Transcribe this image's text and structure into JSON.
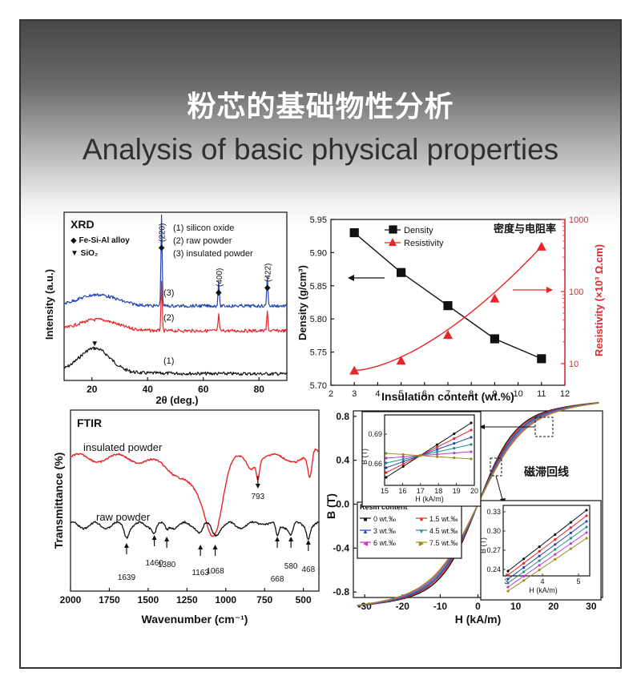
{
  "header": {
    "title_cn": "粉芯的基础物性分析",
    "title_en": "Analysis of basic physical properties"
  },
  "colors": {
    "black": "#111111",
    "red": "#e8262a",
    "blue": "#2346b0",
    "teal": "#1f8f8a",
    "magenta": "#c43cc4",
    "olive": "#a08a18"
  },
  "chart_data": [
    {
      "type": "line",
      "title": "XRD",
      "xlabel": "2θ (deg.)",
      "ylabel": "Intensity (a.u.)",
      "xlim": [
        10,
        90
      ],
      "xticks": [
        "20",
        "40",
        "60",
        "80"
      ],
      "legend_markers": [
        {
          "symbol": "◆",
          "label": "Fe-Si-Al alloy"
        },
        {
          "symbol": "▼",
          "label": "SiO₂"
        }
      ],
      "legend_samples": [
        "(1) silicon oxide",
        "(2) raw powder",
        "(3) insulated powder"
      ],
      "peak_labels": [
        {
          "label": "(220)",
          "x": 45
        },
        {
          "label": "(400)",
          "x": 65.5
        },
        {
          "label": "(422)",
          "x": 83
        }
      ],
      "series": [
        {
          "name": "(1)",
          "color": "black",
          "description": "broad amorphous hump",
          "hump_center": 21
        },
        {
          "name": "(2)",
          "color": "red",
          "peaks": [
            45,
            65.5,
            83
          ]
        },
        {
          "name": "(3)",
          "color": "blue",
          "peaks": [
            45,
            65.5,
            83
          ]
        }
      ]
    },
    {
      "type": "line",
      "title": "密度与电阻率",
      "xlabel": "Insulation content (wt.%)",
      "ylabel": "Density (g/cm³)",
      "y2label": "Resistivity (×10³ Ω.cm)",
      "xlim": [
        2,
        12
      ],
      "ylim": [
        5.7,
        5.95
      ],
      "y2lim_log": [
        5,
        1000
      ],
      "xticks": [
        "2",
        "3",
        "4",
        "5",
        "6",
        "7",
        "8",
        "9",
        "10",
        "11",
        "12"
      ],
      "yticks": [
        "5.70",
        "5.75",
        "5.80",
        "5.85",
        "5.90",
        "5.95"
      ],
      "y2ticks": [
        "10",
        "100",
        "1000"
      ],
      "x": [
        3,
        5,
        7,
        9,
        11
      ],
      "series": [
        {
          "name": "Density",
          "color": "black",
          "marker": "square",
          "axis": "left",
          "values": [
            5.93,
            5.87,
            5.82,
            5.77,
            5.74
          ]
        },
        {
          "name": "Resistivity",
          "color": "red",
          "marker": "triangle",
          "axis": "right",
          "values": [
            8,
            11,
            25,
            80,
            420
          ]
        }
      ]
    },
    {
      "type": "line",
      "title": "FTIR",
      "xlabel": "Wavenumber (cm⁻¹)",
      "ylabel": "Transmittance (%)",
      "xlim": [
        2000,
        400
      ],
      "xticks": [
        "2000",
        "1750",
        "1500",
        "1250",
        "1000",
        "750",
        "500"
      ],
      "series": [
        {
          "name": "insulated powder",
          "color": "red",
          "annotated_bands": [
            793
          ]
        },
        {
          "name": "raw powder",
          "color": "black",
          "annotated_bands": [
            1639,
            1460,
            1380,
            1163,
            1068,
            668,
            580,
            468
          ]
        }
      ]
    },
    {
      "type": "line",
      "title": "磁滞回线",
      "xlabel": "H (kA/m)",
      "ylabel": "B (T)",
      "xlim": [
        -33,
        33
      ],
      "ylim": [
        -0.85,
        0.85
      ],
      "xticks": [
        "-30",
        "-20",
        "-10",
        "0",
        "10",
        "20",
        "30"
      ],
      "yticks": [
        "0.8",
        "0.4",
        "0.0",
        "-0.4",
        "-0.8"
      ],
      "legend_title": "Resin content",
      "series": [
        {
          "name": "0 wt.‰",
          "color": "black",
          "marker": "■"
        },
        {
          "name": "1.5 wt.‰",
          "color": "red",
          "marker": "●"
        },
        {
          "name": "3 wt.‰",
          "color": "blue",
          "marker": "▲"
        },
        {
          "name": "4.5 wt.‰",
          "color": "teal",
          "marker": "▼"
        },
        {
          "name": "6 wt.‰",
          "color": "magenta",
          "marker": "◀"
        },
        {
          "name": "7.5 wt.‰",
          "color": "olive",
          "marker": "▶"
        }
      ],
      "inset_upper": {
        "xlabel": "H (kA/m)",
        "ylabel": "B (T)",
        "xticks": [
          "15",
          "16",
          "17",
          "18",
          "19",
          "20"
        ],
        "yticks": [
          "0.69",
          "0.66"
        ]
      },
      "inset_lower": {
        "xlabel": "H (kA/m)",
        "ylabel": "B (T)",
        "xticks": [
          "3",
          "4",
          "5"
        ],
        "yticks": [
          "0.33",
          "0.30",
          "0.27",
          "0.24"
        ]
      }
    }
  ]
}
